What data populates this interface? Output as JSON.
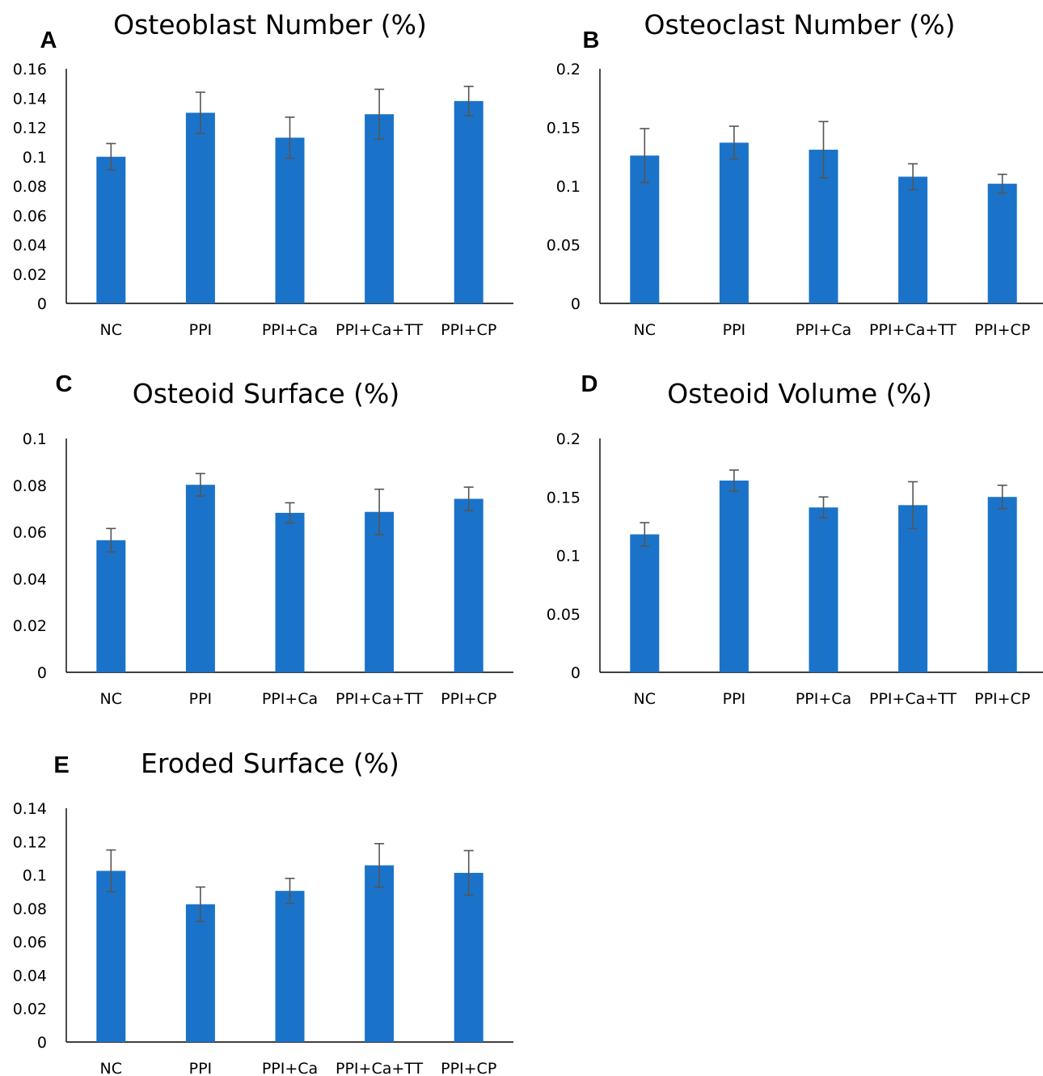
{
  "chart_data": [
    {
      "type": "bar",
      "panel": "A",
      "title": "Osteoblast Number (%)",
      "xlabel": "",
      "ylabel": "",
      "categories": [
        "NC",
        "PPI",
        "PPI+Ca",
        "PPI+Ca+TT",
        "PPI+CP"
      ],
      "values": [
        0.1,
        0.13,
        0.113,
        0.129,
        0.138
      ],
      "errors": [
        0.009,
        0.014,
        0.014,
        0.017,
        0.01
      ],
      "ylim": [
        0,
        0.16
      ],
      "yticks": [
        "0",
        "0.02",
        "0.04",
        "0.06",
        "0.08",
        "0.1",
        "0.12",
        "0.14",
        "0.16"
      ],
      "color": "#1a73c9"
    },
    {
      "type": "bar",
      "panel": "B",
      "title": "Osteoclast Number (%)",
      "xlabel": "",
      "ylabel": "",
      "categories": [
        "NC",
        "PPI",
        "PPI+Ca",
        "PPI+Ca+TT",
        "PPI+CP"
      ],
      "values": [
        0.126,
        0.137,
        0.131,
        0.108,
        0.102
      ],
      "errors": [
        0.023,
        0.014,
        0.024,
        0.011,
        0.008
      ],
      "ylim": [
        0,
        0.2
      ],
      "yticks": [
        "0",
        "0.05",
        "0.1",
        "0.15",
        "0.2"
      ],
      "color": "#1a73c9"
    },
    {
      "type": "bar",
      "panel": "C",
      "title": "Osteoid Surface (%)",
      "xlabel": "",
      "ylabel": "",
      "categories": [
        "NC",
        "PPI",
        "PPI+Ca",
        "PPI+Ca+TT",
        "PPI+CP"
      ],
      "values": [
        0.0565,
        0.0802,
        0.0682,
        0.0686,
        0.0742
      ],
      "errors": [
        0.005,
        0.0048,
        0.0043,
        0.0097,
        0.005
      ],
      "ylim": [
        0,
        0.1
      ],
      "yticks": [
        "0",
        "0.02",
        "0.04",
        "0.06",
        "0.08",
        "0.1"
      ],
      "color": "#1a73c9"
    },
    {
      "type": "bar",
      "panel": "D",
      "title": "Osteoid Volume (%)",
      "xlabel": "",
      "ylabel": "",
      "categories": [
        "NC",
        "PPI",
        "PPI+Ca",
        "PPI+Ca+TT",
        "PPI+CP"
      ],
      "values": [
        0.118,
        0.164,
        0.141,
        0.143,
        0.15
      ],
      "errors": [
        0.01,
        0.009,
        0.009,
        0.02,
        0.01
      ],
      "ylim": [
        0,
        0.2
      ],
      "yticks": [
        "0",
        "0.05",
        "0.1",
        "0.15",
        "0.2"
      ],
      "color": "#1a73c9"
    },
    {
      "type": "bar",
      "panel": "E",
      "title": "Eroded Surface (%)",
      "xlabel": "",
      "ylabel": "",
      "categories": [
        "NC",
        "PPI",
        "PPI+Ca",
        "PPI+Ca+TT",
        "PPI+CP"
      ],
      "values": [
        0.1025,
        0.0825,
        0.0905,
        0.1058,
        0.1013
      ],
      "errors": [
        0.0125,
        0.0103,
        0.0075,
        0.013,
        0.0133
      ],
      "ylim": [
        0,
        0.14
      ],
      "yticks": [
        "0",
        "0.02",
        "0.04",
        "0.06",
        "0.08",
        "0.1",
        "0.12",
        "0.14"
      ],
      "color": "#1a73c9"
    }
  ]
}
